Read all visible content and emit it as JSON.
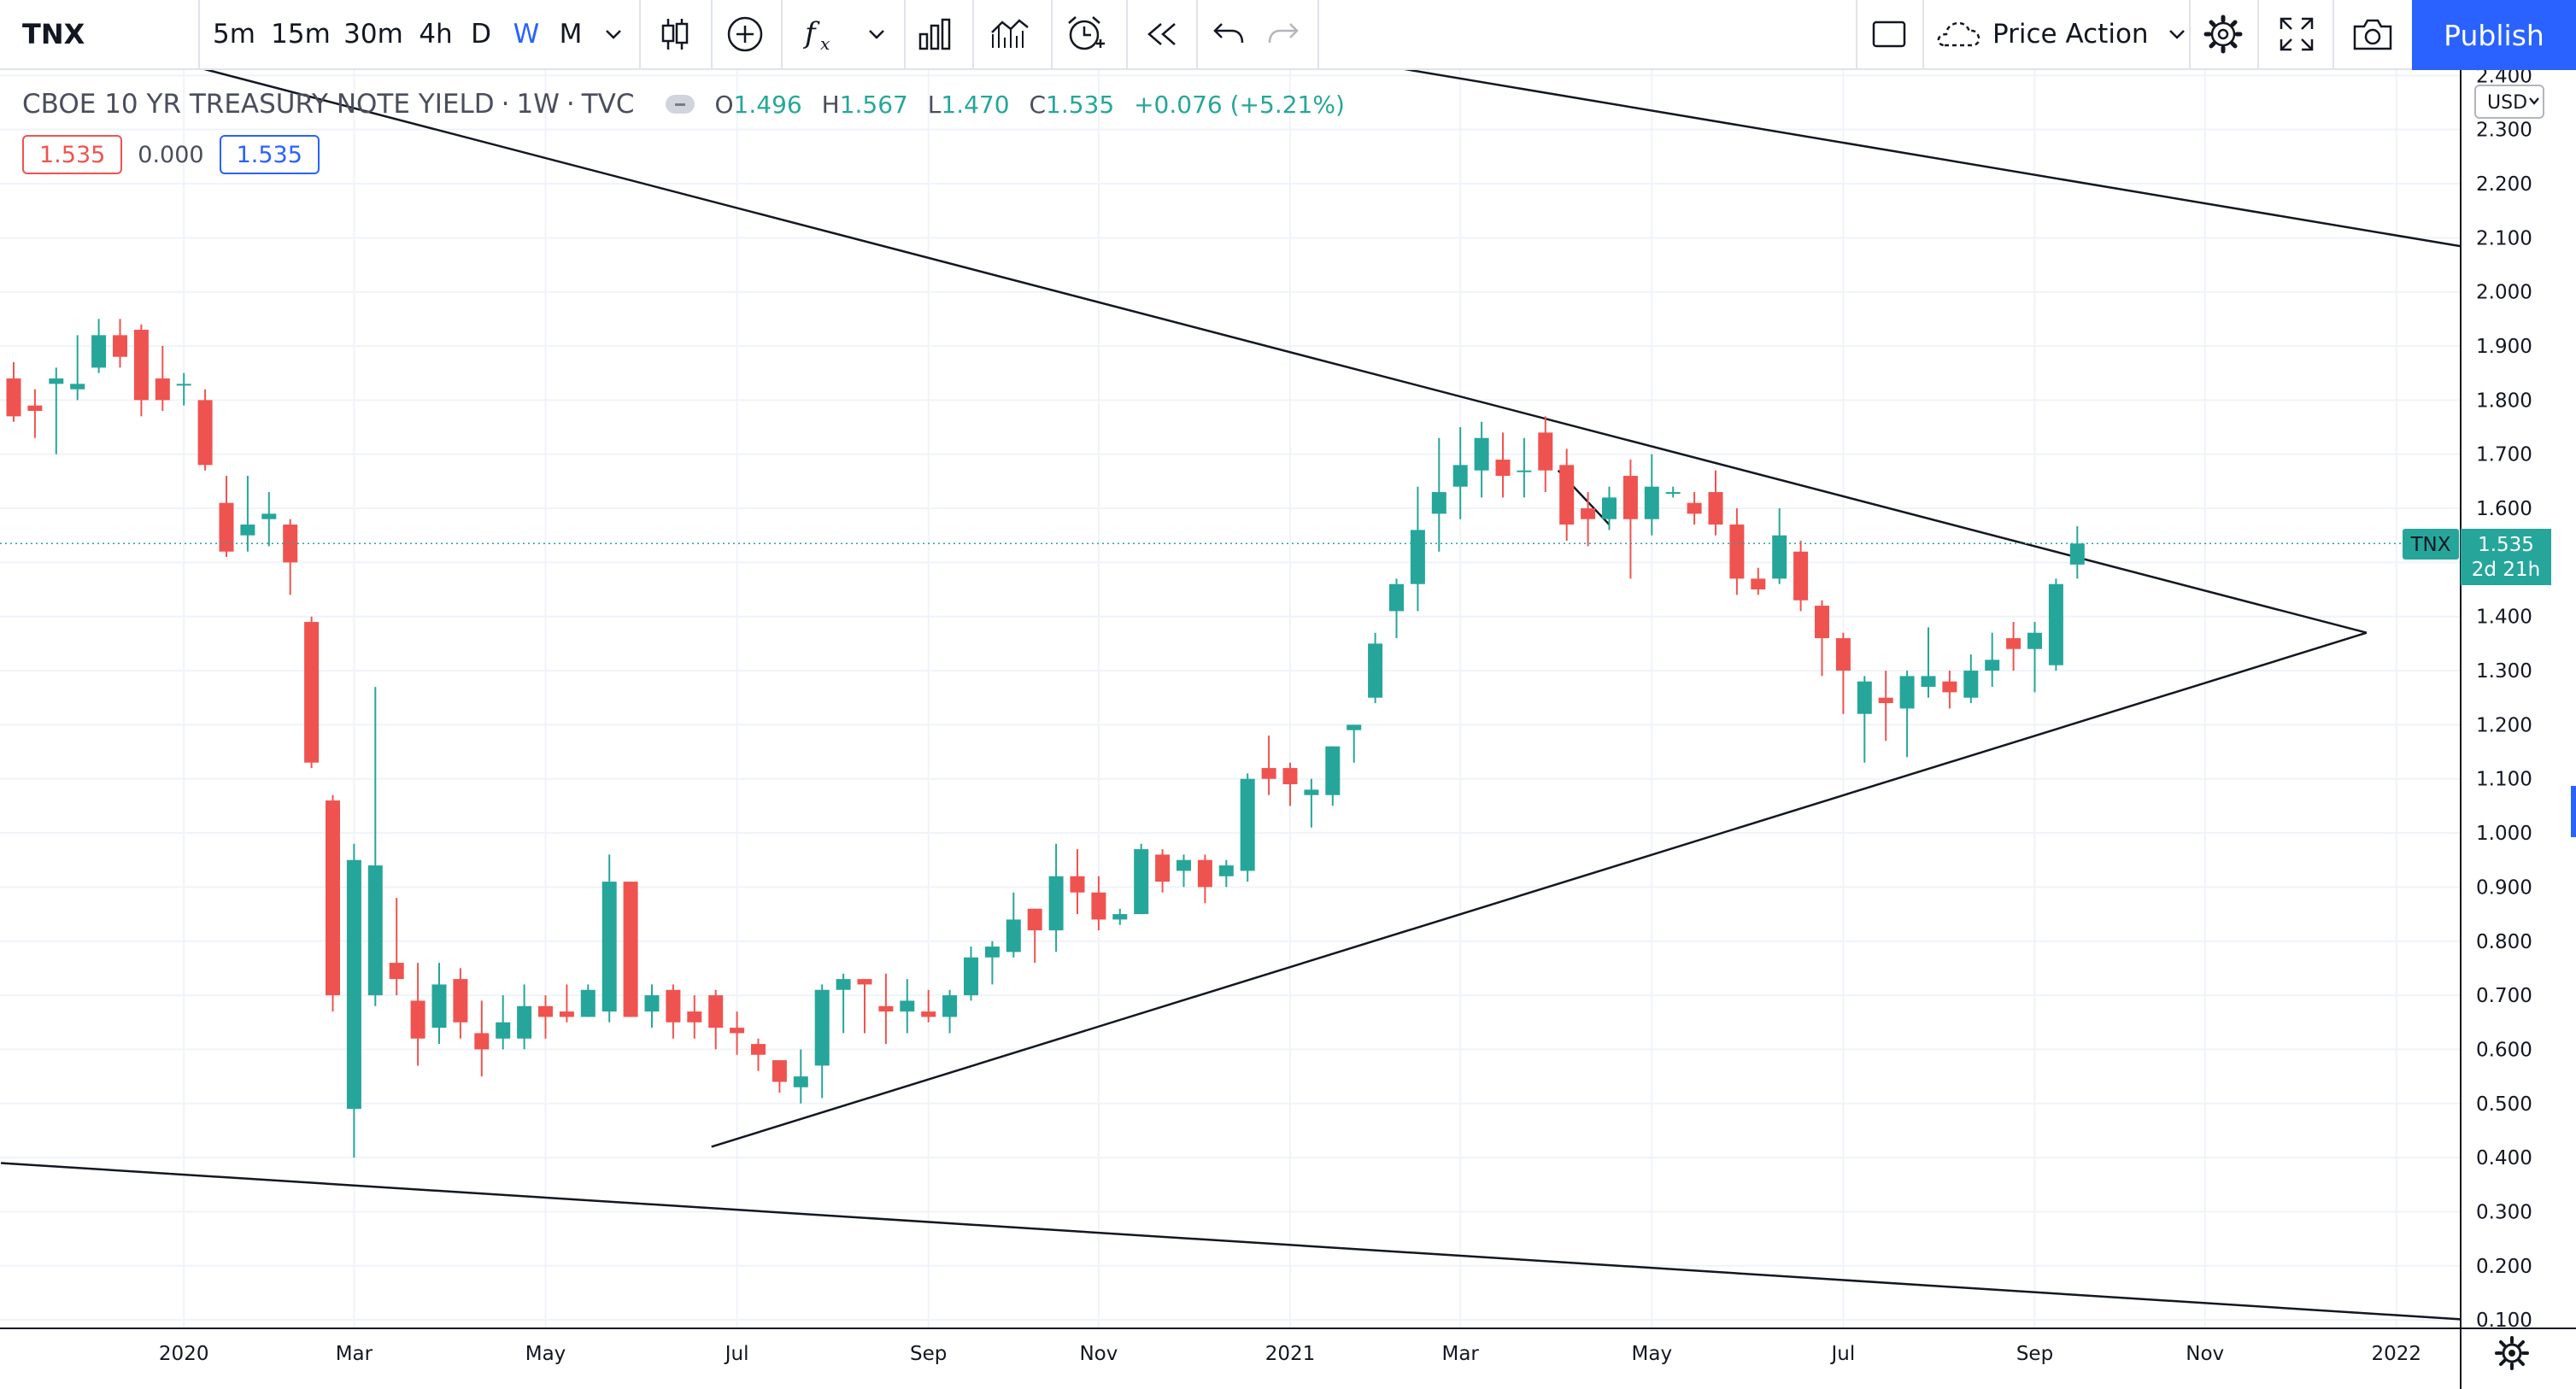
{
  "toolbar": {
    "symbol": "TNX",
    "intervals": [
      "5m",
      "15m",
      "30m",
      "4h",
      "D",
      "W",
      "M"
    ],
    "active_interval": "W",
    "layout_name": "Price Action",
    "publish_label": "Publish"
  },
  "legend": {
    "title": "CBOE 10 YR TREASURY NOTE YIELD",
    "sep1": "·",
    "interval": "1W",
    "sep2": "·",
    "exchange": "TVC",
    "o_label": "O",
    "o": "1.496",
    "h_label": "H",
    "h": "1.567",
    "l_label": "L",
    "l": "1.470",
    "c_label": "C",
    "c": "1.535",
    "change": "+0.076 (+5.21%)",
    "bid": "1.535",
    "spread": "0.000",
    "ask": "1.535"
  },
  "price_axis": {
    "currency": "USD",
    "last_tag_symbol": "TNX",
    "last_price": "1.535",
    "countdown": "2d 21h"
  },
  "colors": {
    "up": "#26a69a",
    "down": "#ef5350",
    "accent": "#2962ff"
  },
  "chart_data": {
    "type": "candlestick",
    "title": "CBOE 10 YR TREASURY NOTE YIELD",
    "interval": "1W",
    "y_ticks": [
      "0.100",
      "0.200",
      "0.300",
      "0.400",
      "0.500",
      "0.600",
      "0.700",
      "0.800",
      "0.900",
      "1.000",
      "1.100",
      "1.200",
      "1.300",
      "1.400",
      "1.500",
      "1.600",
      "1.700",
      "1.800",
      "1.900",
      "2.000",
      "2.100",
      "2.200",
      "2.300",
      "2.400"
    ],
    "ylim": [
      0.086,
      2.41
    ],
    "x_ticks": [
      {
        "label": "2020",
        "week": 8
      },
      {
        "label": "Mar",
        "week": 16
      },
      {
        "label": "May",
        "week": 25
      },
      {
        "label": "Jul",
        "week": 34
      },
      {
        "label": "Sep",
        "week": 43
      },
      {
        "label": "Nov",
        "week": 51
      },
      {
        "label": "2021",
        "week": 60
      },
      {
        "label": "Mar",
        "week": 68
      },
      {
        "label": "May",
        "week": 77
      },
      {
        "label": "Jul",
        "week": 86
      },
      {
        "label": "Sep",
        "week": 95
      },
      {
        "label": "Nov",
        "week": 103
      },
      {
        "label": "2022",
        "week": 112
      }
    ],
    "candles": [
      {
        "week": 0,
        "o": 1.84,
        "h": 1.87,
        "l": 1.76,
        "c": 1.77
      },
      {
        "week": 1,
        "o": 1.79,
        "h": 1.82,
        "l": 1.73,
        "c": 1.78
      },
      {
        "week": 2,
        "o": 1.83,
        "h": 1.86,
        "l": 1.7,
        "c": 1.84
      },
      {
        "week": 3,
        "o": 1.82,
        "h": 1.92,
        "l": 1.8,
        "c": 1.83
      },
      {
        "week": 4,
        "o": 1.86,
        "h": 1.95,
        "l": 1.85,
        "c": 1.92
      },
      {
        "week": 5,
        "o": 1.92,
        "h": 1.95,
        "l": 1.86,
        "c": 1.88
      },
      {
        "week": 6,
        "o": 1.93,
        "h": 1.94,
        "l": 1.77,
        "c": 1.8
      },
      {
        "week": 7,
        "o": 1.84,
        "h": 1.9,
        "l": 1.78,
        "c": 1.8
      },
      {
        "week": 8,
        "o": 1.83,
        "h": 1.85,
        "l": 1.79,
        "c": 1.83
      },
      {
        "week": 9,
        "o": 1.8,
        "h": 1.82,
        "l": 1.67,
        "c": 1.68
      },
      {
        "week": 10,
        "o": 1.61,
        "h": 1.66,
        "l": 1.51,
        "c": 1.52
      },
      {
        "week": 11,
        "o": 1.55,
        "h": 1.66,
        "l": 1.52,
        "c": 1.57
      },
      {
        "week": 12,
        "o": 1.58,
        "h": 1.63,
        "l": 1.53,
        "c": 1.59
      },
      {
        "week": 13,
        "o": 1.57,
        "h": 1.58,
        "l": 1.44,
        "c": 1.5
      },
      {
        "week": 14,
        "o": 1.39,
        "h": 1.4,
        "l": 1.12,
        "c": 1.13
      },
      {
        "week": 15,
        "o": 1.06,
        "h": 1.07,
        "l": 0.67,
        "c": 0.7
      },
      {
        "week": 16,
        "o": 0.49,
        "h": 0.98,
        "l": 0.4,
        "c": 0.95
      },
      {
        "week": 17,
        "o": 0.7,
        "h": 1.27,
        "l": 0.68,
        "c": 0.94
      },
      {
        "week": 18,
        "o": 0.76,
        "h": 0.88,
        "l": 0.7,
        "c": 0.73
      },
      {
        "week": 19,
        "o": 0.69,
        "h": 0.76,
        "l": 0.57,
        "c": 0.62
      },
      {
        "week": 20,
        "o": 0.64,
        "h": 0.76,
        "l": 0.61,
        "c": 0.72
      },
      {
        "week": 21,
        "o": 0.73,
        "h": 0.75,
        "l": 0.62,
        "c": 0.65
      },
      {
        "week": 22,
        "o": 0.63,
        "h": 0.69,
        "l": 0.55,
        "c": 0.6
      },
      {
        "week": 23,
        "o": 0.62,
        "h": 0.7,
        "l": 0.6,
        "c": 0.65
      },
      {
        "week": 24,
        "o": 0.62,
        "h": 0.72,
        "l": 0.6,
        "c": 0.68
      },
      {
        "week": 25,
        "o": 0.68,
        "h": 0.7,
        "l": 0.62,
        "c": 0.66
      },
      {
        "week": 26,
        "o": 0.67,
        "h": 0.72,
        "l": 0.65,
        "c": 0.66
      },
      {
        "week": 27,
        "o": 0.66,
        "h": 0.72,
        "l": 0.66,
        "c": 0.71
      },
      {
        "week": 28,
        "o": 0.67,
        "h": 0.96,
        "l": 0.65,
        "c": 0.91
      },
      {
        "week": 29,
        "o": 0.91,
        "h": 0.91,
        "l": 0.66,
        "c": 0.66
      },
      {
        "week": 30,
        "o": 0.67,
        "h": 0.72,
        "l": 0.64,
        "c": 0.7
      },
      {
        "week": 31,
        "o": 0.71,
        "h": 0.72,
        "l": 0.62,
        "c": 0.65
      },
      {
        "week": 32,
        "o": 0.67,
        "h": 0.7,
        "l": 0.62,
        "c": 0.65
      },
      {
        "week": 33,
        "o": 0.7,
        "h": 0.71,
        "l": 0.6,
        "c": 0.64
      },
      {
        "week": 34,
        "o": 0.64,
        "h": 0.67,
        "l": 0.59,
        "c": 0.63
      },
      {
        "week": 35,
        "o": 0.61,
        "h": 0.62,
        "l": 0.56,
        "c": 0.59
      },
      {
        "week": 36,
        "o": 0.58,
        "h": 0.58,
        "l": 0.52,
        "c": 0.54
      },
      {
        "week": 37,
        "o": 0.53,
        "h": 0.6,
        "l": 0.5,
        "c": 0.55
      },
      {
        "week": 38,
        "o": 0.57,
        "h": 0.72,
        "l": 0.51,
        "c": 0.71
      },
      {
        "week": 39,
        "o": 0.71,
        "h": 0.74,
        "l": 0.63,
        "c": 0.73
      },
      {
        "week": 40,
        "o": 0.73,
        "h": 0.73,
        "l": 0.63,
        "c": 0.72
      },
      {
        "week": 41,
        "o": 0.68,
        "h": 0.74,
        "l": 0.61,
        "c": 0.67
      },
      {
        "week": 42,
        "o": 0.67,
        "h": 0.73,
        "l": 0.63,
        "c": 0.69
      },
      {
        "week": 43,
        "o": 0.67,
        "h": 0.71,
        "l": 0.65,
        "c": 0.66
      },
      {
        "week": 44,
        "o": 0.66,
        "h": 0.71,
        "l": 0.63,
        "c": 0.7
      },
      {
        "week": 45,
        "o": 0.7,
        "h": 0.79,
        "l": 0.69,
        "c": 0.77
      },
      {
        "week": 46,
        "o": 0.77,
        "h": 0.8,
        "l": 0.72,
        "c": 0.79
      },
      {
        "week": 47,
        "o": 0.78,
        "h": 0.89,
        "l": 0.77,
        "c": 0.84
      },
      {
        "week": 48,
        "o": 0.86,
        "h": 0.86,
        "l": 0.76,
        "c": 0.82
      },
      {
        "week": 49,
        "o": 0.82,
        "h": 0.98,
        "l": 0.78,
        "c": 0.92
      },
      {
        "week": 50,
        "o": 0.92,
        "h": 0.97,
        "l": 0.85,
        "c": 0.89
      },
      {
        "week": 51,
        "o": 0.89,
        "h": 0.92,
        "l": 0.82,
        "c": 0.84
      },
      {
        "week": 52,
        "o": 0.84,
        "h": 0.86,
        "l": 0.83,
        "c": 0.85
      },
      {
        "week": 53,
        "o": 0.85,
        "h": 0.98,
        "l": 0.85,
        "c": 0.97
      },
      {
        "week": 54,
        "o": 0.96,
        "h": 0.97,
        "l": 0.89,
        "c": 0.91
      },
      {
        "week": 55,
        "o": 0.93,
        "h": 0.96,
        "l": 0.9,
        "c": 0.95
      },
      {
        "week": 56,
        "o": 0.95,
        "h": 0.96,
        "l": 0.87,
        "c": 0.9
      },
      {
        "week": 57,
        "o": 0.92,
        "h": 0.95,
        "l": 0.9,
        "c": 0.94
      },
      {
        "week": 58,
        "o": 0.93,
        "h": 1.11,
        "l": 0.91,
        "c": 1.1
      },
      {
        "week": 59,
        "o": 1.12,
        "h": 1.18,
        "l": 1.07,
        "c": 1.1
      },
      {
        "week": 60,
        "o": 1.12,
        "h": 1.13,
        "l": 1.05,
        "c": 1.09
      },
      {
        "week": 61,
        "o": 1.07,
        "h": 1.1,
        "l": 1.01,
        "c": 1.08
      },
      {
        "week": 62,
        "o": 1.07,
        "h": 1.16,
        "l": 1.05,
        "c": 1.16
      },
      {
        "week": 63,
        "o": 1.19,
        "h": 1.2,
        "l": 1.13,
        "c": 1.2
      },
      {
        "week": 64,
        "o": 1.25,
        "h": 1.37,
        "l": 1.24,
        "c": 1.35
      },
      {
        "week": 65,
        "o": 1.41,
        "h": 1.47,
        "l": 1.36,
        "c": 1.46
      },
      {
        "week": 66,
        "o": 1.46,
        "h": 1.64,
        "l": 1.41,
        "c": 1.56
      },
      {
        "week": 67,
        "o": 1.59,
        "h": 1.73,
        "l": 1.52,
        "c": 1.63
      },
      {
        "week": 68,
        "o": 1.64,
        "h": 1.75,
        "l": 1.58,
        "c": 1.68
      },
      {
        "week": 69,
        "o": 1.67,
        "h": 1.76,
        "l": 1.62,
        "c": 1.73
      },
      {
        "week": 70,
        "o": 1.69,
        "h": 1.74,
        "l": 1.62,
        "c": 1.66
      },
      {
        "week": 71,
        "o": 1.67,
        "h": 1.73,
        "l": 1.62,
        "c": 1.67
      },
      {
        "week": 72,
        "o": 1.74,
        "h": 1.77,
        "l": 1.63,
        "c": 1.67
      },
      {
        "week": 73,
        "o": 1.68,
        "h": 1.71,
        "l": 1.54,
        "c": 1.57
      },
      {
        "week": 74,
        "o": 1.6,
        "h": 1.63,
        "l": 1.53,
        "c": 1.58
      },
      {
        "week": 75,
        "o": 1.58,
        "h": 1.64,
        "l": 1.56,
        "c": 1.62
      },
      {
        "week": 76,
        "o": 1.66,
        "h": 1.69,
        "l": 1.47,
        "c": 1.58
      },
      {
        "week": 77,
        "o": 1.58,
        "h": 1.7,
        "l": 1.55,
        "c": 1.64
      },
      {
        "week": 78,
        "o": 1.63,
        "h": 1.64,
        "l": 1.62,
        "c": 1.63
      },
      {
        "week": 79,
        "o": 1.61,
        "h": 1.63,
        "l": 1.57,
        "c": 1.59
      },
      {
        "week": 80,
        "o": 1.63,
        "h": 1.67,
        "l": 1.55,
        "c": 1.57
      },
      {
        "week": 81,
        "o": 1.57,
        "h": 1.6,
        "l": 1.44,
        "c": 1.47
      },
      {
        "week": 82,
        "o": 1.47,
        "h": 1.49,
        "l": 1.44,
        "c": 1.45
      },
      {
        "week": 83,
        "o": 1.47,
        "h": 1.6,
        "l": 1.46,
        "c": 1.55
      },
      {
        "week": 84,
        "o": 1.52,
        "h": 1.54,
        "l": 1.41,
        "c": 1.43
      },
      {
        "week": 85,
        "o": 1.42,
        "h": 1.43,
        "l": 1.29,
        "c": 1.36
      },
      {
        "week": 86,
        "o": 1.36,
        "h": 1.37,
        "l": 1.22,
        "c": 1.3
      },
      {
        "week": 87,
        "o": 1.22,
        "h": 1.29,
        "l": 1.13,
        "c": 1.28
      },
      {
        "week": 88,
        "o": 1.25,
        "h": 1.3,
        "l": 1.17,
        "c": 1.24
      },
      {
        "week": 89,
        "o": 1.23,
        "h": 1.3,
        "l": 1.14,
        "c": 1.29
      },
      {
        "week": 90,
        "o": 1.27,
        "h": 1.38,
        "l": 1.25,
        "c": 1.29
      },
      {
        "week": 91,
        "o": 1.28,
        "h": 1.3,
        "l": 1.23,
        "c": 1.26
      },
      {
        "week": 92,
        "o": 1.25,
        "h": 1.33,
        "l": 1.24,
        "c": 1.3
      },
      {
        "week": 93,
        "o": 1.3,
        "h": 1.37,
        "l": 1.27,
        "c": 1.32
      },
      {
        "week": 94,
        "o": 1.36,
        "h": 1.39,
        "l": 1.3,
        "c": 1.34
      },
      {
        "week": 95,
        "o": 1.34,
        "h": 1.39,
        "l": 1.26,
        "c": 1.37
      },
      {
        "week": 96,
        "o": 1.31,
        "h": 1.47,
        "l": 1.3,
        "c": 1.46
      },
      {
        "week": 97,
        "o": 1.496,
        "h": 1.567,
        "l": 1.47,
        "c": 1.535
      }
    ],
    "trendlines": [
      {
        "x1": 6.2,
        "y1": 2.44,
        "x2": 110.6,
        "y2": 1.37
      },
      {
        "x1": 32.8,
        "y1": 0.42,
        "x2": 110.6,
        "y2": 1.37
      },
      {
        "x1": 62.6,
        "y1": 2.43,
        "x2": 117.2,
        "y2": 2.07
      },
      {
        "x1": -0.6,
        "y1": 0.39,
        "x2": 115.5,
        "y2": 0.1
      },
      {
        "x1": 72.6,
        "y1": 1.67,
        "x2": 75.0,
        "y2": 1.57
      }
    ],
    "last_price": 1.535
  }
}
